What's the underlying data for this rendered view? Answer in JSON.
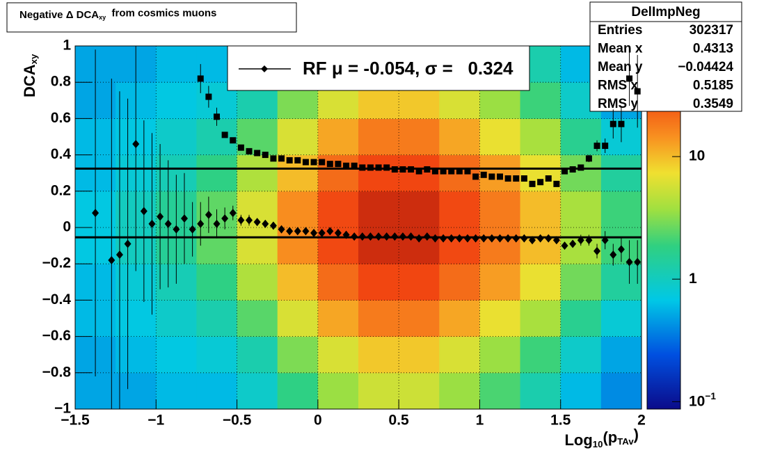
{
  "chart_data": {
    "type": "heatmap",
    "title": [
      {
        "text": "Negative Δ DCA"
      },
      {
        "text": "xy",
        "sub": true
      },
      {
        "text": "  from cosmics muons"
      }
    ],
    "xlabel": [
      {
        "text": "Log"
      },
      {
        "text": "10",
        "sub": true
      },
      {
        "text": "(p"
      },
      {
        "text": "TAv",
        "sub": true
      },
      {
        "text": ")"
      }
    ],
    "ylabel": [
      {
        "text": "DCA"
      },
      {
        "text": "xy",
        "sub": true
      }
    ],
    "xlim": [
      -1.5,
      2
    ],
    "ylim": [
      -1,
      1
    ],
    "xticks": [
      {
        "value": -1.5,
        "label": "−1.5"
      },
      {
        "value": -1,
        "label": "−1"
      },
      {
        "value": -0.5,
        "label": "−0.5"
      },
      0,
      0.5,
      1,
      1.5,
      2
    ],
    "yticks": [
      {
        "value": -1,
        "label": "−1"
      },
      {
        "value": -0.8,
        "label": "−0.8"
      },
      {
        "value": -0.6,
        "label": "−0.6"
      },
      {
        "value": -0.4,
        "label": "−0.4"
      },
      {
        "value": -0.2,
        "label": "−0.2"
      },
      0,
      0.2,
      0.4,
      0.6,
      0.8,
      1
    ],
    "grid": true,
    "heatmap": {
      "xbins": [
        -1.5,
        -1.25,
        -1,
        -0.75,
        -0.5,
        -0.25,
        0,
        0.25,
        0.5,
        0.75,
        1,
        1.25,
        1.5,
        1.75,
        2
      ],
      "ybins": [
        -1,
        -0.8,
        -0.6,
        -0.4,
        -0.2,
        0,
        0.2,
        0.4,
        0.6,
        0.8,
        1
      ],
      "z": [
        [
          0.5,
          0.5,
          0.6,
          0.6,
          0.9,
          1.8,
          3.6,
          5.4,
          5.4,
          3.6,
          2.2,
          1.2,
          0.6,
          0.4
        ],
        [
          0.5,
          0.6,
          0.7,
          0.8,
          1.2,
          3,
          6,
          9,
          9,
          6,
          3.6,
          2,
          0.9,
          0.5
        ],
        [
          0.6,
          0.7,
          0.9,
          1.2,
          2.4,
          6,
          12,
          18,
          18,
          12,
          7,
          4,
          1.6,
          0.8
        ],
        [
          0.6,
          0.8,
          1.1,
          1.8,
          4.2,
          10,
          21,
          31,
          31,
          21,
          13,
          7,
          2.8,
          1.4
        ],
        [
          0.7,
          1,
          1.5,
          2.5,
          6,
          15,
          30,
          45,
          45,
          30,
          18,
          10,
          4,
          2
        ],
        [
          0.7,
          1,
          1.5,
          2.5,
          6,
          15,
          30,
          45,
          45,
          30,
          18,
          10,
          4,
          2
        ],
        [
          0.6,
          0.8,
          1.1,
          1.8,
          4.2,
          10,
          21,
          31,
          31,
          21,
          13,
          7,
          2.8,
          1.4
        ],
        [
          0.6,
          0.7,
          0.9,
          1.2,
          2.4,
          6,
          12,
          18,
          18,
          12,
          7,
          4,
          1.6,
          0.8
        ],
        [
          0.5,
          0.6,
          0.7,
          0.8,
          1.2,
          3,
          6,
          9,
          9,
          6,
          3.6,
          2,
          0.9,
          0.5
        ],
        [
          0.5,
          0.5,
          0.6,
          0.6,
          0.9,
          1.8,
          3.6,
          5.4,
          5.4,
          3.6,
          2.2,
          1.2,
          0.6,
          0.4
        ]
      ]
    },
    "zlim": [
      0.087,
      80
    ],
    "zlog": true,
    "zticks": [
      {
        "value": 0.1,
        "label": "10",
        "exponent": "−1"
      },
      1,
      10
    ],
    "x": [
      -1.375,
      -1.325,
      -1.275,
      -1.225,
      -1.175,
      -1.125,
      -1.075,
      -1.025,
      -0.975,
      -0.925,
      -0.875,
      -0.825,
      -0.775,
      -0.725,
      -0.675,
      -0.625,
      -0.575,
      -0.525,
      -0.475,
      -0.425,
      -0.375,
      -0.325,
      -0.275,
      -0.225,
      -0.175,
      -0.125,
      -0.075,
      -0.025,
      0.025,
      0.075,
      0.125,
      0.175,
      0.225,
      0.275,
      0.325,
      0.375,
      0.425,
      0.475,
      0.525,
      0.575,
      0.625,
      0.675,
      0.725,
      0.775,
      0.825,
      0.875,
      0.925,
      0.975,
      1.025,
      1.075,
      1.125,
      1.175,
      1.225,
      1.275,
      1.325,
      1.375,
      1.425,
      1.475,
      1.525,
      1.575,
      1.625,
      1.675,
      1.725,
      1.775,
      1.825,
      1.875,
      1.925,
      1.975
    ],
    "series": [
      {
        "marker": "diamond",
        "color": "#000000",
        "values": [
          0.08,
          null,
          -0.18,
          -0.15,
          -0.09,
          0.46,
          0.09,
          0.02,
          0.06,
          0.02,
          -0.01,
          0.05,
          -0.01,
          0.02,
          0.07,
          0.02,
          0.05,
          0.08,
          0.04,
          0.04,
          0.03,
          0.02,
          0.01,
          -0.01,
          -0.02,
          -0.02,
          -0.02,
          -0.03,
          -0.03,
          -0.02,
          -0.03,
          -0.04,
          -0.05,
          -0.05,
          -0.05,
          -0.05,
          -0.05,
          -0.05,
          -0.05,
          -0.05,
          -0.06,
          -0.05,
          -0.06,
          -0.06,
          -0.06,
          -0.06,
          -0.06,
          -0.06,
          -0.06,
          -0.06,
          -0.06,
          -0.06,
          -0.06,
          -0.06,
          -0.07,
          -0.06,
          -0.06,
          -0.07,
          -0.1,
          -0.09,
          -0.07,
          -0.07,
          -0.13,
          -0.07,
          -0.15,
          -0.12,
          -0.19,
          -0.19
        ],
        "errors": [
          0.9,
          null,
          1.0,
          0.9,
          0.8,
          0.7,
          0.5,
          0.5,
          0.4,
          0.35,
          0.3,
          0.25,
          0.15,
          0.12,
          0.1,
          0.08,
          0.06,
          0.04,
          0.03,
          0.03,
          0.02,
          0.02,
          0.02,
          0.02,
          0.02,
          0.02,
          0.02,
          0.02,
          0.02,
          0.02,
          0.02,
          0.02,
          0.02,
          0.02,
          0.02,
          0.02,
          0.02,
          0.02,
          0.02,
          0.02,
          0.02,
          0.02,
          0.02,
          0.02,
          0.02,
          0.02,
          0.02,
          0.02,
          0.02,
          0.02,
          0.02,
          0.02,
          0.02,
          0.02,
          0.02,
          0.02,
          0.02,
          0.02,
          0.02,
          0.02,
          0.03,
          0.03,
          0.04,
          0.05,
          0.06,
          0.07,
          0.12,
          0.12
        ]
      },
      {
        "marker": "square",
        "color": "#000000",
        "values": [
          null,
          null,
          null,
          null,
          null,
          null,
          null,
          null,
          null,
          null,
          null,
          null,
          null,
          0.82,
          0.72,
          0.61,
          0.51,
          0.48,
          0.44,
          0.42,
          0.41,
          0.4,
          0.38,
          0.38,
          0.37,
          0.37,
          0.36,
          0.36,
          0.36,
          0.35,
          0.35,
          0.34,
          0.34,
          0.33,
          0.33,
          0.33,
          0.33,
          0.32,
          0.32,
          0.32,
          0.31,
          0.32,
          0.31,
          0.31,
          0.31,
          0.31,
          0.31,
          0.28,
          0.29,
          0.28,
          0.28,
          0.27,
          0.27,
          0.27,
          0.24,
          0.25,
          0.27,
          0.24,
          0.31,
          0.32,
          0.33,
          0.38,
          0.45,
          0.45,
          0.57,
          0.57,
          0.82,
          0.75
        ],
        "errors": [
          null,
          null,
          null,
          null,
          null,
          null,
          null,
          null,
          null,
          null,
          null,
          null,
          null,
          0.08,
          0.06,
          0.05,
          0.01,
          0.01,
          0.01,
          0.01,
          0.01,
          0.01,
          0.01,
          0.01,
          0.01,
          0.01,
          0.01,
          0.01,
          0.01,
          0.01,
          0.01,
          0.01,
          0.01,
          0.01,
          0.01,
          0.01,
          0.01,
          0.01,
          0.01,
          0.01,
          0.01,
          0.01,
          0.01,
          0.01,
          0.01,
          0.01,
          0.01,
          0.01,
          0.01,
          0.01,
          0.01,
          0.01,
          0.01,
          0.01,
          0.01,
          0.01,
          0.01,
          0.01,
          0.01,
          0.01,
          0.01,
          0.02,
          0.03,
          0.04,
          0.08,
          0.1,
          0.15,
          0.2
        ]
      }
    ],
    "hlines": [
      -0.054,
      0.324
    ],
    "legend": {
      "text": "RF μ = -0.054, σ =   0.324"
    },
    "stats": {
      "title": "DelImpNeg",
      "rows": [
        {
          "label": "Entries",
          "value": 302317
        },
        {
          "label": "Mean x",
          "value": 0.4313
        },
        {
          "label": "Mean y",
          "value": "−0.04424"
        },
        {
          "label": "RMS x",
          "value": 0.5185
        },
        {
          "label": "RMS y",
          "value": 0.3549
        }
      ]
    }
  }
}
